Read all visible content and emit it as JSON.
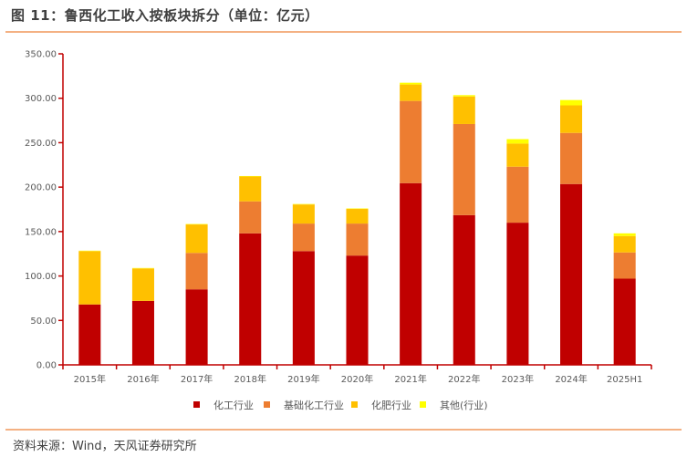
{
  "header": {
    "title": "图 11：鲁西化工收入按板块拆分（单位：亿元）"
  },
  "footer": {
    "source": "资料来源：Wind，天风证券研究所"
  },
  "colors": {
    "axis": "#c00000",
    "series": [
      "#c00000",
      "#ed7d31",
      "#ffc000",
      "#ffff00"
    ]
  },
  "chart_data": {
    "type": "bar",
    "stacked": true,
    "title": "鲁西化工收入按板块拆分（单位：亿元）",
    "xlabel": "",
    "ylabel": "",
    "ylim": [
      0,
      350
    ],
    "yticks": [
      0,
      50,
      100,
      150,
      200,
      250,
      300,
      350
    ],
    "ytick_labels": [
      "0.00",
      "50.00",
      "100.00",
      "150.00",
      "200.00",
      "250.00",
      "300.00",
      "350.00"
    ],
    "grid": false,
    "legend_position": "bottom",
    "categories": [
      "2015年",
      "2016年",
      "2017年",
      "2018年",
      "2019年",
      "2020年",
      "2021年",
      "2022年",
      "2023年",
      "2024年",
      "2025H1"
    ],
    "series": [
      {
        "name": "化工行业",
        "values": [
          68,
          72,
          85,
          148,
          128,
          123,
          204.5,
          168.5,
          160,
          203.5,
          97
        ]
      },
      {
        "name": "基础化工行业",
        "values": [
          0,
          0,
          41,
          36,
          31,
          36,
          92.5,
          102.5,
          63,
          57.5,
          29.5
        ]
      },
      {
        "name": "化肥行业",
        "values": [
          60,
          36.5,
          32,
          28,
          21.5,
          16.5,
          18.5,
          31,
          26,
          31,
          18.5
        ]
      },
      {
        "name": "其他(行业)",
        "values": [
          0.5,
          0.5,
          0.5,
          0.5,
          0.5,
          0.5,
          2,
          1.5,
          5,
          6,
          3
        ]
      }
    ]
  }
}
